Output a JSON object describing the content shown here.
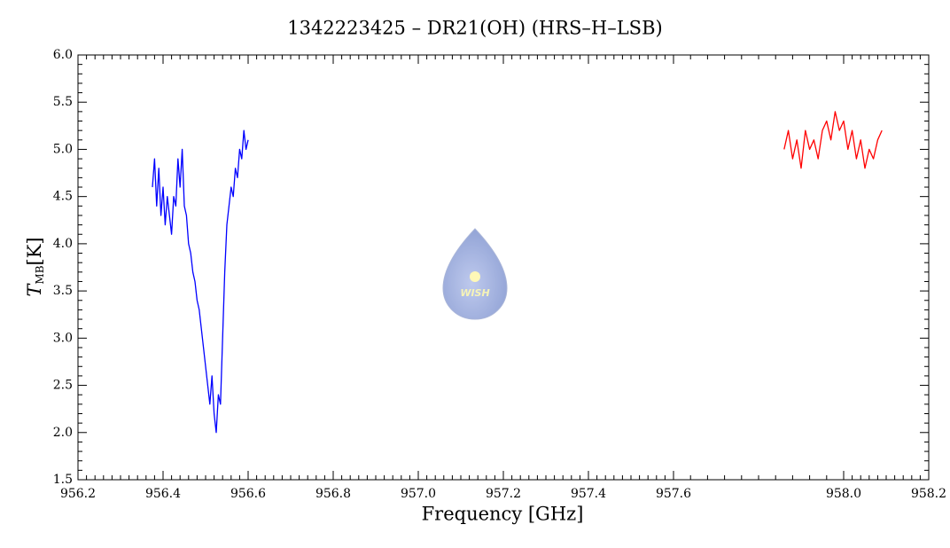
{
  "chart_data": {
    "type": "line",
    "title": "1342223425 – DR21(OH) (HRS–H–LSB)",
    "xlabel": "Frequency [GHz]",
    "ylabel": "T",
    "ylabel_sub": "MB",
    "ylabel_unit": "[K]",
    "watermark": "WISH",
    "xlim": [
      956.2,
      958.2
    ],
    "xticks": [
      956.2,
      956.4,
      956.6,
      956.8,
      {
        "value": 957,
        "label": "957.0"
      },
      957.2,
      957.4,
      957.6,
      {
        "value": 958,
        "label": "958.0"
      },
      958.2
    ],
    "ylim": [
      1.5,
      6
    ],
    "yticks": [
      1.5,
      {
        "value": 2,
        "label": "2.0"
      },
      2.5,
      {
        "value": 3,
        "label": "3.0"
      },
      3.5,
      {
        "value": 4,
        "label": "4.0"
      },
      4.5,
      {
        "value": 5,
        "label": "5.0"
      },
      5.5,
      {
        "value": 6,
        "label": "6.0"
      }
    ],
    "series": [
      {
        "color": "#0000ff",
        "x": [
          956.375,
          956.38,
          956.385,
          956.39,
          956.395,
          956.4,
          956.405,
          956.41,
          956.415,
          956.42,
          956.425,
          956.43,
          956.435,
          956.44,
          956.445,
          956.45,
          956.455,
          956.46,
          956.465,
          956.47,
          956.475,
          956.48,
          956.485,
          956.49,
          956.495,
          956.5,
          956.505,
          956.51,
          956.515,
          956.52,
          956.525,
          956.53,
          956.535,
          956.54,
          956.545,
          956.55,
          956.555,
          956.56,
          956.565,
          956.57,
          956.575,
          956.58,
          956.585,
          956.59,
          956.595,
          956.6
        ],
        "values": [
          4.6,
          4.9,
          4.4,
          4.8,
          4.3,
          4.6,
          4.2,
          4.5,
          4.3,
          4.1,
          4.5,
          4.4,
          4.9,
          4.6,
          5.0,
          4.4,
          4.3,
          4.0,
          3.9,
          3.7,
          3.6,
          3.4,
          3.3,
          3.1,
          2.9,
          2.7,
          2.5,
          2.3,
          2.6,
          2.2,
          2.0,
          2.4,
          2.3,
          3.0,
          3.7,
          4.2,
          4.4,
          4.6,
          4.5,
          4.8,
          4.7,
          5.0,
          4.9,
          5.2,
          5.0,
          5.1
        ]
      },
      {
        "color": "#ff0000",
        "x": [
          957.86,
          957.87,
          957.88,
          957.89,
          957.9,
          957.91,
          957.92,
          957.93,
          957.94,
          957.95,
          957.96,
          957.97,
          957.98,
          957.99,
          958,
          958.01,
          958.02,
          958.03,
          958.04,
          958.05,
          958.06,
          958.07,
          958.08,
          958.09
        ],
        "values": [
          5.0,
          5.2,
          4.9,
          5.1,
          4.8,
          5.2,
          5.0,
          5.1,
          4.9,
          5.2,
          5.3,
          5.1,
          5.4,
          5.2,
          5.3,
          5.0,
          5.2,
          4.9,
          5.1,
          4.8,
          5.0,
          4.9,
          5.1,
          5.2
        ]
      }
    ]
  }
}
